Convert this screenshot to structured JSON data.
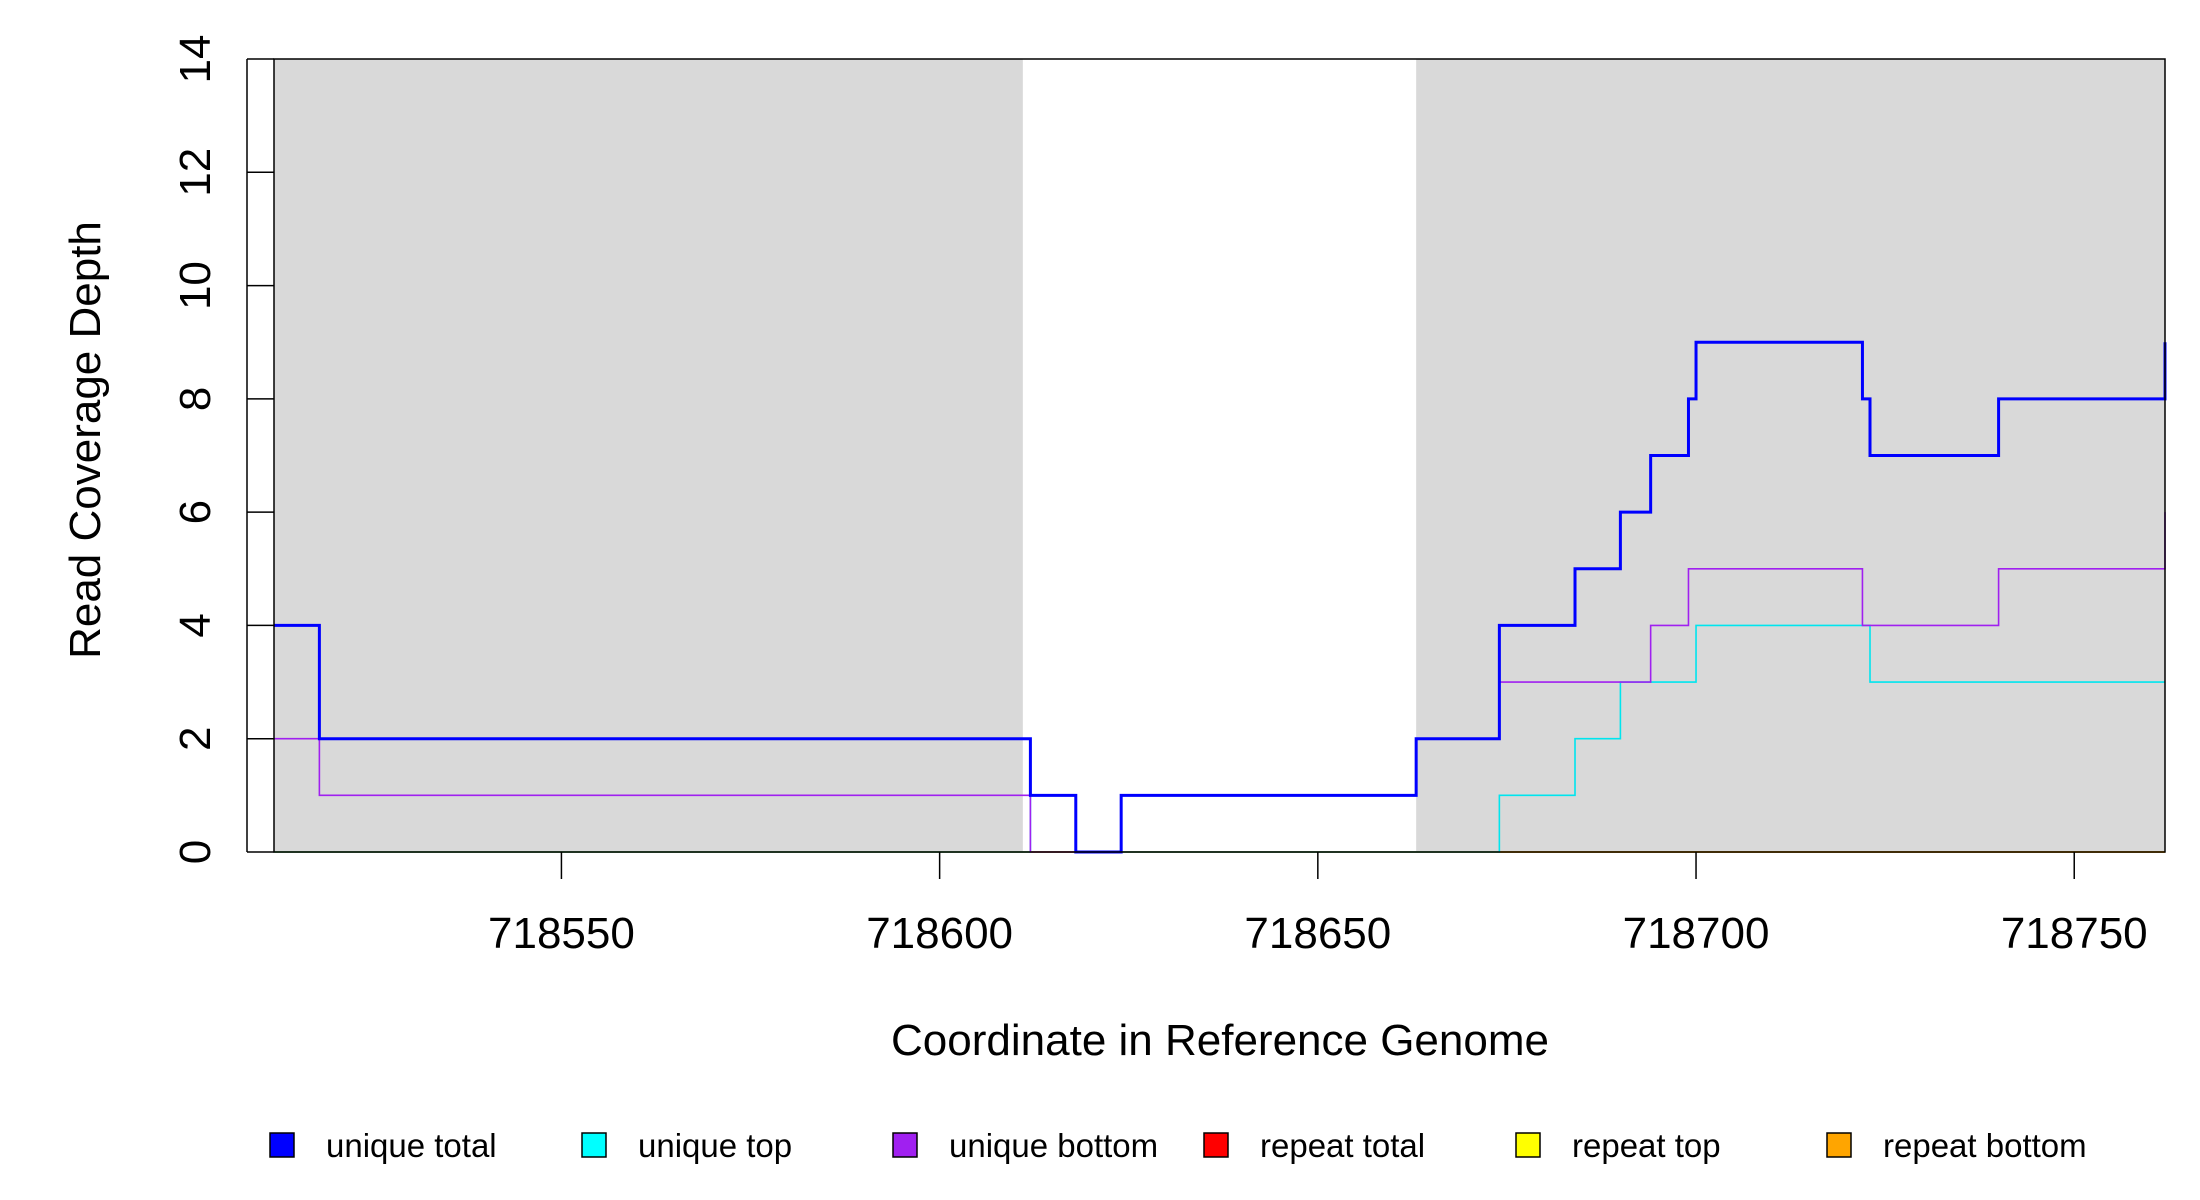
{
  "chart_data": {
    "type": "line",
    "xlabel": "Coordinate in Reference Genome",
    "ylabel": "Read Coverage Depth",
    "xlim": [
      718512,
      718762
    ],
    "ylim": [
      0,
      14
    ],
    "x_ticks": [
      718550,
      718600,
      718650,
      718700,
      718750
    ],
    "y_ticks": [
      0,
      2,
      4,
      6,
      8,
      10,
      12,
      14
    ],
    "grid": false,
    "background": "#ffffff",
    "shaded_regions": [
      {
        "x_start": 718512,
        "x_end": 718611,
        "color": "#d9d9d9"
      },
      {
        "x_start": 718663,
        "x_end": 718762,
        "color": "#d9d9d9"
      }
    ],
    "series": [
      {
        "name": "unique total",
        "color": "#0000ff",
        "steps": [
          [
            718512,
            4
          ],
          [
            718518,
            2
          ],
          [
            718612,
            1
          ],
          [
            718618,
            0
          ],
          [
            718624,
            1
          ],
          [
            718663,
            2
          ],
          [
            718674,
            4
          ],
          [
            718684,
            5
          ],
          [
            718690,
            6
          ],
          [
            718694,
            7
          ],
          [
            718699,
            8
          ],
          [
            718700,
            9
          ],
          [
            718722,
            8
          ],
          [
            718723,
            7
          ],
          [
            718740,
            8
          ],
          [
            718762,
            9
          ]
        ]
      },
      {
        "name": "unique top",
        "color": "#00e5ee",
        "steps": [
          [
            718512,
            0
          ],
          [
            718612,
            1
          ],
          [
            718618,
            0
          ],
          [
            718674,
            1
          ],
          [
            718684,
            2
          ],
          [
            718690,
            3
          ],
          [
            718700,
            4
          ],
          [
            718723,
            3
          ],
          [
            718762,
            3
          ]
        ]
      },
      {
        "name": "unique bottom",
        "color": "#a020f0",
        "steps": [
          [
            718512,
            2
          ],
          [
            718518,
            1
          ],
          [
            718612,
            0
          ],
          [
            718624,
            1
          ],
          [
            718663,
            2
          ],
          [
            718674,
            3
          ],
          [
            718694,
            4
          ],
          [
            718699,
            5
          ],
          [
            718722,
            4
          ],
          [
            718740,
            5
          ],
          [
            718762,
            6
          ]
        ]
      },
      {
        "name": "repeat total",
        "color": "#ff0000",
        "steps": [
          [
            718512,
            0
          ],
          [
            718762,
            0
          ]
        ]
      },
      {
        "name": "repeat top",
        "color": "#ffff00",
        "steps": [
          [
            718512,
            0
          ],
          [
            718762,
            0
          ]
        ]
      },
      {
        "name": "repeat bottom",
        "color": "#ffa500",
        "steps": [
          [
            718512,
            0
          ],
          [
            718762,
            0
          ]
        ]
      }
    ],
    "legend": {
      "placement": "bottom",
      "entries": [
        {
          "label": "unique total",
          "color": "#0000ff"
        },
        {
          "label": "unique top",
          "color": "#00ffff"
        },
        {
          "label": "unique bottom",
          "color": "#a020f0"
        },
        {
          "label": "repeat total",
          "color": "#ff0000"
        },
        {
          "label": "repeat top",
          "color": "#ffff00"
        },
        {
          "label": "repeat bottom",
          "color": "#ffa500"
        }
      ]
    }
  }
}
